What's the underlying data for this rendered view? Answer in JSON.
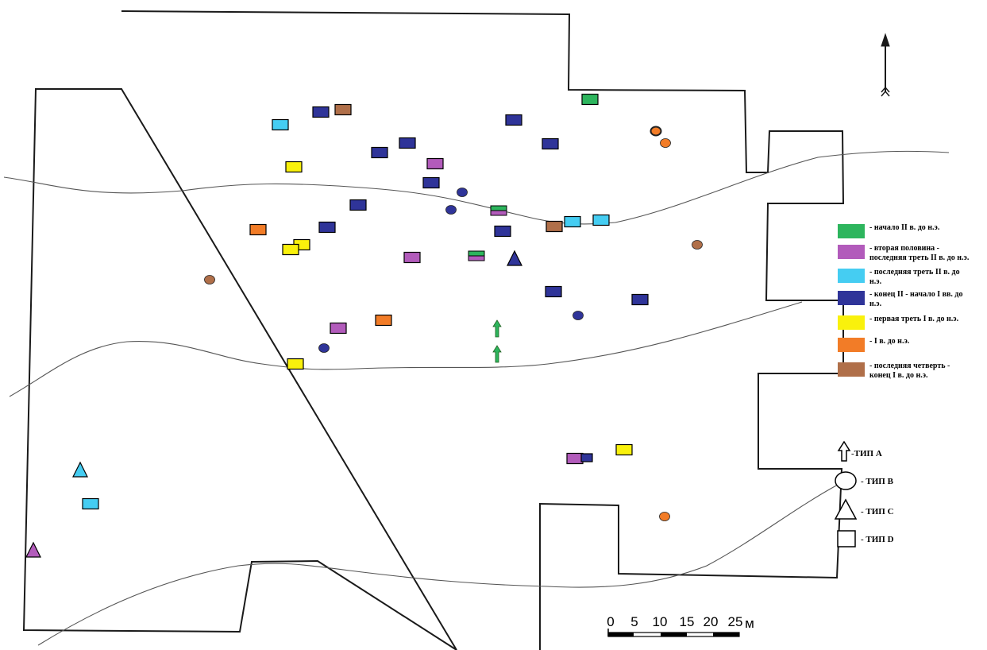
{
  "north_arrow": {
    "icon": "north-arrow-icon"
  },
  "colors": {
    "c1": "#2db55d",
    "c2": "#b25bbb",
    "c3": "#45cdf2",
    "c4": "#2f3499",
    "c5": "#f9f10c",
    "c6": "#f27c27",
    "c7": "#b06f49",
    "typeA": "#2db55d"
  },
  "legend": {
    "periods": [
      {
        "key": "c1",
        "lines": [
          "- начало II в. до н.э."
        ]
      },
      {
        "key": "c2",
        "lines": [
          "- вторая половина -",
          "последняя треть II в. до н.э."
        ]
      },
      {
        "key": "c3",
        "lines": [
          "- последняя треть II в. до",
          "н.э."
        ]
      },
      {
        "key": "c4",
        "lines": [
          "- конец II - начало I вв. до",
          "н.э."
        ]
      },
      {
        "key": "c5",
        "lines": [
          "- первая треть I в. до н.э."
        ]
      },
      {
        "key": "c6",
        "lines": [
          "- I в. до н.э."
        ]
      },
      {
        "key": "c7",
        "lines": [
          "- последняя четверть -",
          "конец I в. до н.э."
        ]
      }
    ],
    "types": [
      {
        "shape": "arrow",
        "label": "-ТИП А"
      },
      {
        "shape": "circle",
        "label": "- ТИП В"
      },
      {
        "shape": "triangle",
        "label": "- ТИП С"
      },
      {
        "shape": "square",
        "label": "- ТИП D"
      }
    ]
  },
  "scale": {
    "ticks": [
      "0",
      "5",
      "10",
      "15",
      "20",
      "25"
    ],
    "unit": "м"
  },
  "finds": [
    {
      "type": "D",
      "color": "c1"
    },
    {
      "type": "D",
      "color": "c4"
    },
    {
      "type": "D",
      "color": "c7"
    },
    {
      "type": "D",
      "color": "c3"
    },
    {
      "type": "D",
      "color": "c4"
    },
    {
      "type": "D",
      "color": "c4"
    },
    {
      "type": "D",
      "color": "c4"
    },
    {
      "type": "D",
      "color": "c4"
    },
    {
      "type": "D",
      "color": "c2"
    },
    {
      "type": "D",
      "color": "c5"
    },
    {
      "type": "D",
      "color": "c4"
    },
    {
      "type": "D",
      "color": "c4"
    },
    {
      "type": "D",
      "color": "c1",
      "color2": "c2"
    },
    {
      "type": "D",
      "color": "c3"
    },
    {
      "type": "D",
      "color": "c7"
    },
    {
      "type": "D",
      "color": "c3"
    },
    {
      "type": "D",
      "color": "c4"
    },
    {
      "type": "D",
      "color": "c6"
    },
    {
      "type": "D",
      "color": "c4"
    },
    {
      "type": "D",
      "color": "c5"
    },
    {
      "type": "D",
      "color": "c5"
    },
    {
      "type": "D",
      "color": "c2"
    },
    {
      "type": "D",
      "color": "c1",
      "color2": "c2"
    },
    {
      "type": "D",
      "color": "c4"
    },
    {
      "type": "D",
      "color": "c4"
    },
    {
      "type": "D",
      "color": "c2"
    },
    {
      "type": "D",
      "color": "c6"
    },
    {
      "type": "D",
      "color": "c5"
    },
    {
      "type": "D",
      "color": "c2"
    },
    {
      "type": "D",
      "color": "c4"
    },
    {
      "type": "D",
      "color": "c5"
    },
    {
      "type": "D",
      "color": "c3"
    },
    {
      "type": "B",
      "color": "c6"
    },
    {
      "type": "B",
      "color": "c6"
    },
    {
      "type": "B",
      "color": "c4"
    },
    {
      "type": "B",
      "color": "c4"
    },
    {
      "type": "B",
      "color": "c7"
    },
    {
      "type": "B",
      "color": "c7"
    },
    {
      "type": "B",
      "color": "c4"
    },
    {
      "type": "B",
      "color": "c4"
    },
    {
      "type": "B",
      "color": "c6"
    },
    {
      "type": "C",
      "color": "c4"
    },
    {
      "type": "C",
      "color": "c3"
    },
    {
      "type": "C",
      "color": "c2"
    },
    {
      "type": "A",
      "color": "typeA"
    },
    {
      "type": "A",
      "color": "typeA"
    }
  ]
}
